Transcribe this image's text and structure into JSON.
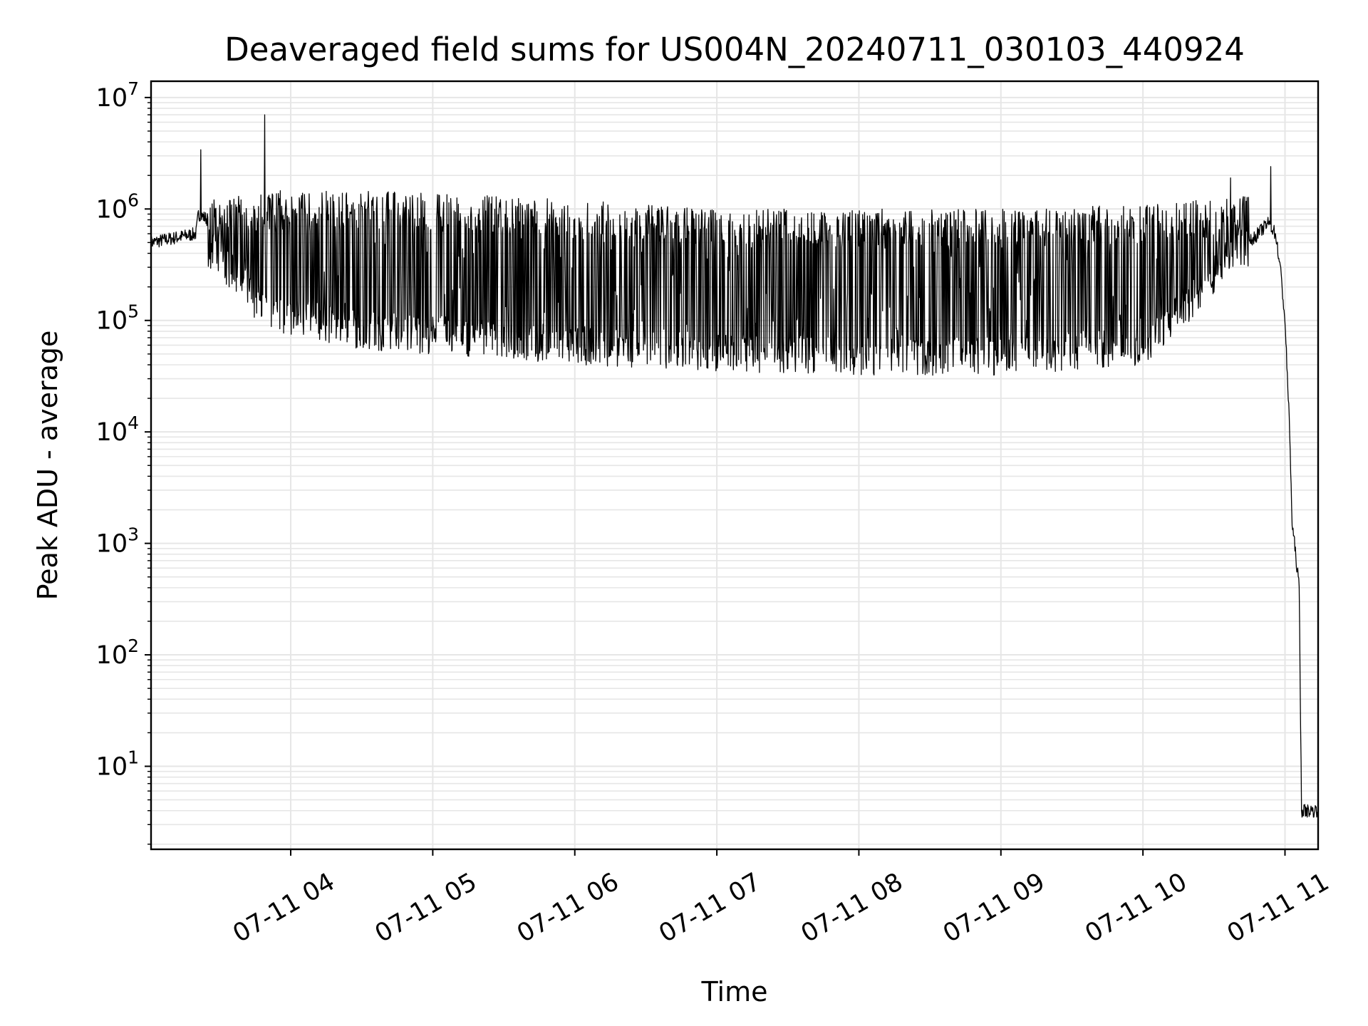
{
  "chart_data": {
    "type": "line",
    "title": "Deaveraged field sums for US004N_20240711_030103_440924",
    "xlabel": "Time",
    "ylabel": "Peak ADU - average",
    "yscale": "log",
    "ylim": [
      1.8,
      14000000
    ],
    "xlim": [
      "2024-07-11 03:01",
      "2024-07-11 11:14"
    ],
    "grid": true,
    "line_color": "#000000",
    "grid_color": "#e6e6e6",
    "x_ticks": [
      {
        "time": "2024-07-11 04:00",
        "label": "07-11 04"
      },
      {
        "time": "2024-07-11 05:00",
        "label": "07-11 05"
      },
      {
        "time": "2024-07-11 06:00",
        "label": "07-11 06"
      },
      {
        "time": "2024-07-11 07:00",
        "label": "07-11 07"
      },
      {
        "time": "2024-07-11 08:00",
        "label": "07-11 08"
      },
      {
        "time": "2024-07-11 09:00",
        "label": "07-11 09"
      },
      {
        "time": "2024-07-11 10:00",
        "label": "07-11 10"
      },
      {
        "time": "2024-07-11 11:00",
        "label": "07-11 11"
      }
    ],
    "y_ticks": [
      {
        "value": 10,
        "base": "10",
        "exp": "1"
      },
      {
        "value": 100,
        "base": "10",
        "exp": "2"
      },
      {
        "value": 1000,
        "base": "10",
        "exp": "3"
      },
      {
        "value": 10000,
        "base": "10",
        "exp": "4"
      },
      {
        "value": 100000,
        "base": "10",
        "exp": "5"
      },
      {
        "value": 1000000,
        "base": "10",
        "exp": "6"
      },
      {
        "value": 10000000,
        "base": "10",
        "exp": "7"
      }
    ],
    "series": [
      {
        "baseline": [
          {
            "time": "2024-07-11 03:01",
            "value": 500000
          },
          {
            "time": "2024-07-11 03:20",
            "value": 600000
          },
          {
            "time": "2024-07-11 03:21",
            "value": 900000
          },
          {
            "time": "2024-07-11 03:30",
            "value": 700000
          },
          {
            "time": "2024-07-11 03:45",
            "value": 400000
          },
          {
            "time": "2024-07-11 04:00",
            "value": 300000
          },
          {
            "time": "2024-07-11 04:30",
            "value": 200000
          },
          {
            "time": "2024-07-11 05:00",
            "value": 150000
          },
          {
            "time": "2024-07-11 06:00",
            "value": 100000
          },
          {
            "time": "2024-07-11 07:00",
            "value": 80000
          },
          {
            "time": "2024-07-11 08:00",
            "value": 70000
          },
          {
            "time": "2024-07-11 09:00",
            "value": 65000
          },
          {
            "time": "2024-07-11 10:00",
            "value": 80000
          },
          {
            "time": "2024-07-11 10:15",
            "value": 120000
          },
          {
            "time": "2024-07-11 10:30",
            "value": 250000
          },
          {
            "time": "2024-07-11 10:45",
            "value": 500000
          },
          {
            "time": "2024-07-11 10:53",
            "value": 750000
          },
          {
            "time": "2024-07-11 10:56",
            "value": 600000
          },
          {
            "time": "2024-07-11 10:58",
            "value": 300000
          },
          {
            "time": "2024-07-11 11:00",
            "value": 100000
          },
          {
            "time": "2024-07-11 11:02",
            "value": 10000
          },
          {
            "time": "2024-07-11 11:03",
            "value": 1500
          },
          {
            "time": "2024-07-11 11:04",
            "value": 1000
          },
          {
            "time": "2024-07-11 11:06",
            "value": 400
          },
          {
            "time": "2024-07-11 11:07",
            "value": 4
          },
          {
            "time": "2024-07-11 11:14",
            "value": 4
          }
        ],
        "upper_envelope": [
          {
            "time": "2024-07-11 03:25",
            "value": 1200000
          },
          {
            "time": "2024-07-11 04:00",
            "value": 1500000
          },
          {
            "time": "2024-07-11 05:00",
            "value": 1400000
          },
          {
            "time": "2024-07-11 06:00",
            "value": 1200000
          },
          {
            "time": "2024-07-11 07:00",
            "value": 1000000
          },
          {
            "time": "2024-07-11 08:00",
            "value": 1000000
          },
          {
            "time": "2024-07-11 09:00",
            "value": 1000000
          },
          {
            "time": "2024-07-11 10:00",
            "value": 1100000
          },
          {
            "time": "2024-07-11 10:40",
            "value": 1300000
          }
        ],
        "lower_envelope": [
          {
            "time": "2024-07-11 03:25",
            "value": 300000
          },
          {
            "time": "2024-07-11 03:50",
            "value": 80000
          },
          {
            "time": "2024-07-11 04:30",
            "value": 55000
          },
          {
            "time": "2024-07-11 05:00",
            "value": 50000
          },
          {
            "time": "2024-07-11 06:00",
            "value": 40000
          },
          {
            "time": "2024-07-11 07:00",
            "value": 35000
          },
          {
            "time": "2024-07-11 08:00",
            "value": 32000
          },
          {
            "time": "2024-07-11 09:00",
            "value": 32000
          },
          {
            "time": "2024-07-11 10:00",
            "value": 40000
          },
          {
            "time": "2024-07-11 10:20",
            "value": 100000
          },
          {
            "time": "2024-07-11 10:40",
            "value": 300000
          }
        ],
        "spikes": [
          {
            "time": "2024-07-11 03:22",
            "value": 3400000
          },
          {
            "time": "2024-07-11 03:49",
            "value": 7000000
          },
          {
            "time": "2024-07-11 10:37",
            "value": 1900000
          },
          {
            "time": "2024-07-11 10:54",
            "value": 2400000
          }
        ]
      }
    ]
  }
}
